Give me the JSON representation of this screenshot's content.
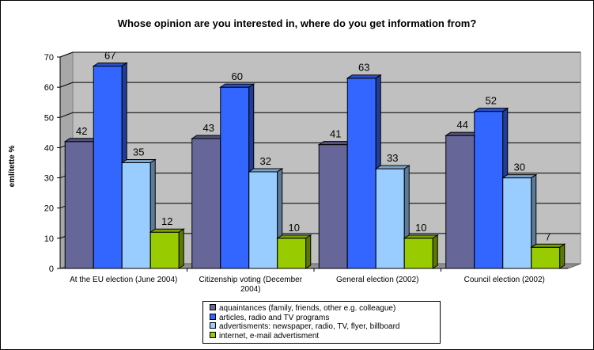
{
  "chart_data": {
    "type": "bar",
    "title": "Whose opinion are you interested in, where do you get information from?",
    "ylabel": "említette %",
    "xlabel": "",
    "ylim": [
      0,
      70
    ],
    "yticks": [
      0,
      10,
      20,
      30,
      40,
      50,
      60,
      70
    ],
    "grid": true,
    "legend_position": "bottom",
    "categories": [
      [
        "At the EU election (June 2004)"
      ],
      [
        "Citizenship voting (December",
        "2004)"
      ],
      [
        "General election (2002)"
      ],
      [
        "Council election (2002)"
      ]
    ],
    "series": [
      {
        "name": "aquaintances (family, friends, other e.g. colleague)",
        "values": [
          42,
          43,
          41,
          44
        ],
        "color": "#666699"
      },
      {
        "name": "articles, radio and TV programs",
        "values": [
          67,
          60,
          63,
          52
        ],
        "color": "#3366FF"
      },
      {
        "name": "advertisments: newspaper, radio, TV, flyer, billboard",
        "values": [
          35,
          32,
          33,
          30
        ],
        "color": "#99CCFF"
      },
      {
        "name": "internet, e-mail advertisment",
        "values": [
          12,
          10,
          10,
          7
        ],
        "color": "#99CC00"
      }
    ]
  }
}
